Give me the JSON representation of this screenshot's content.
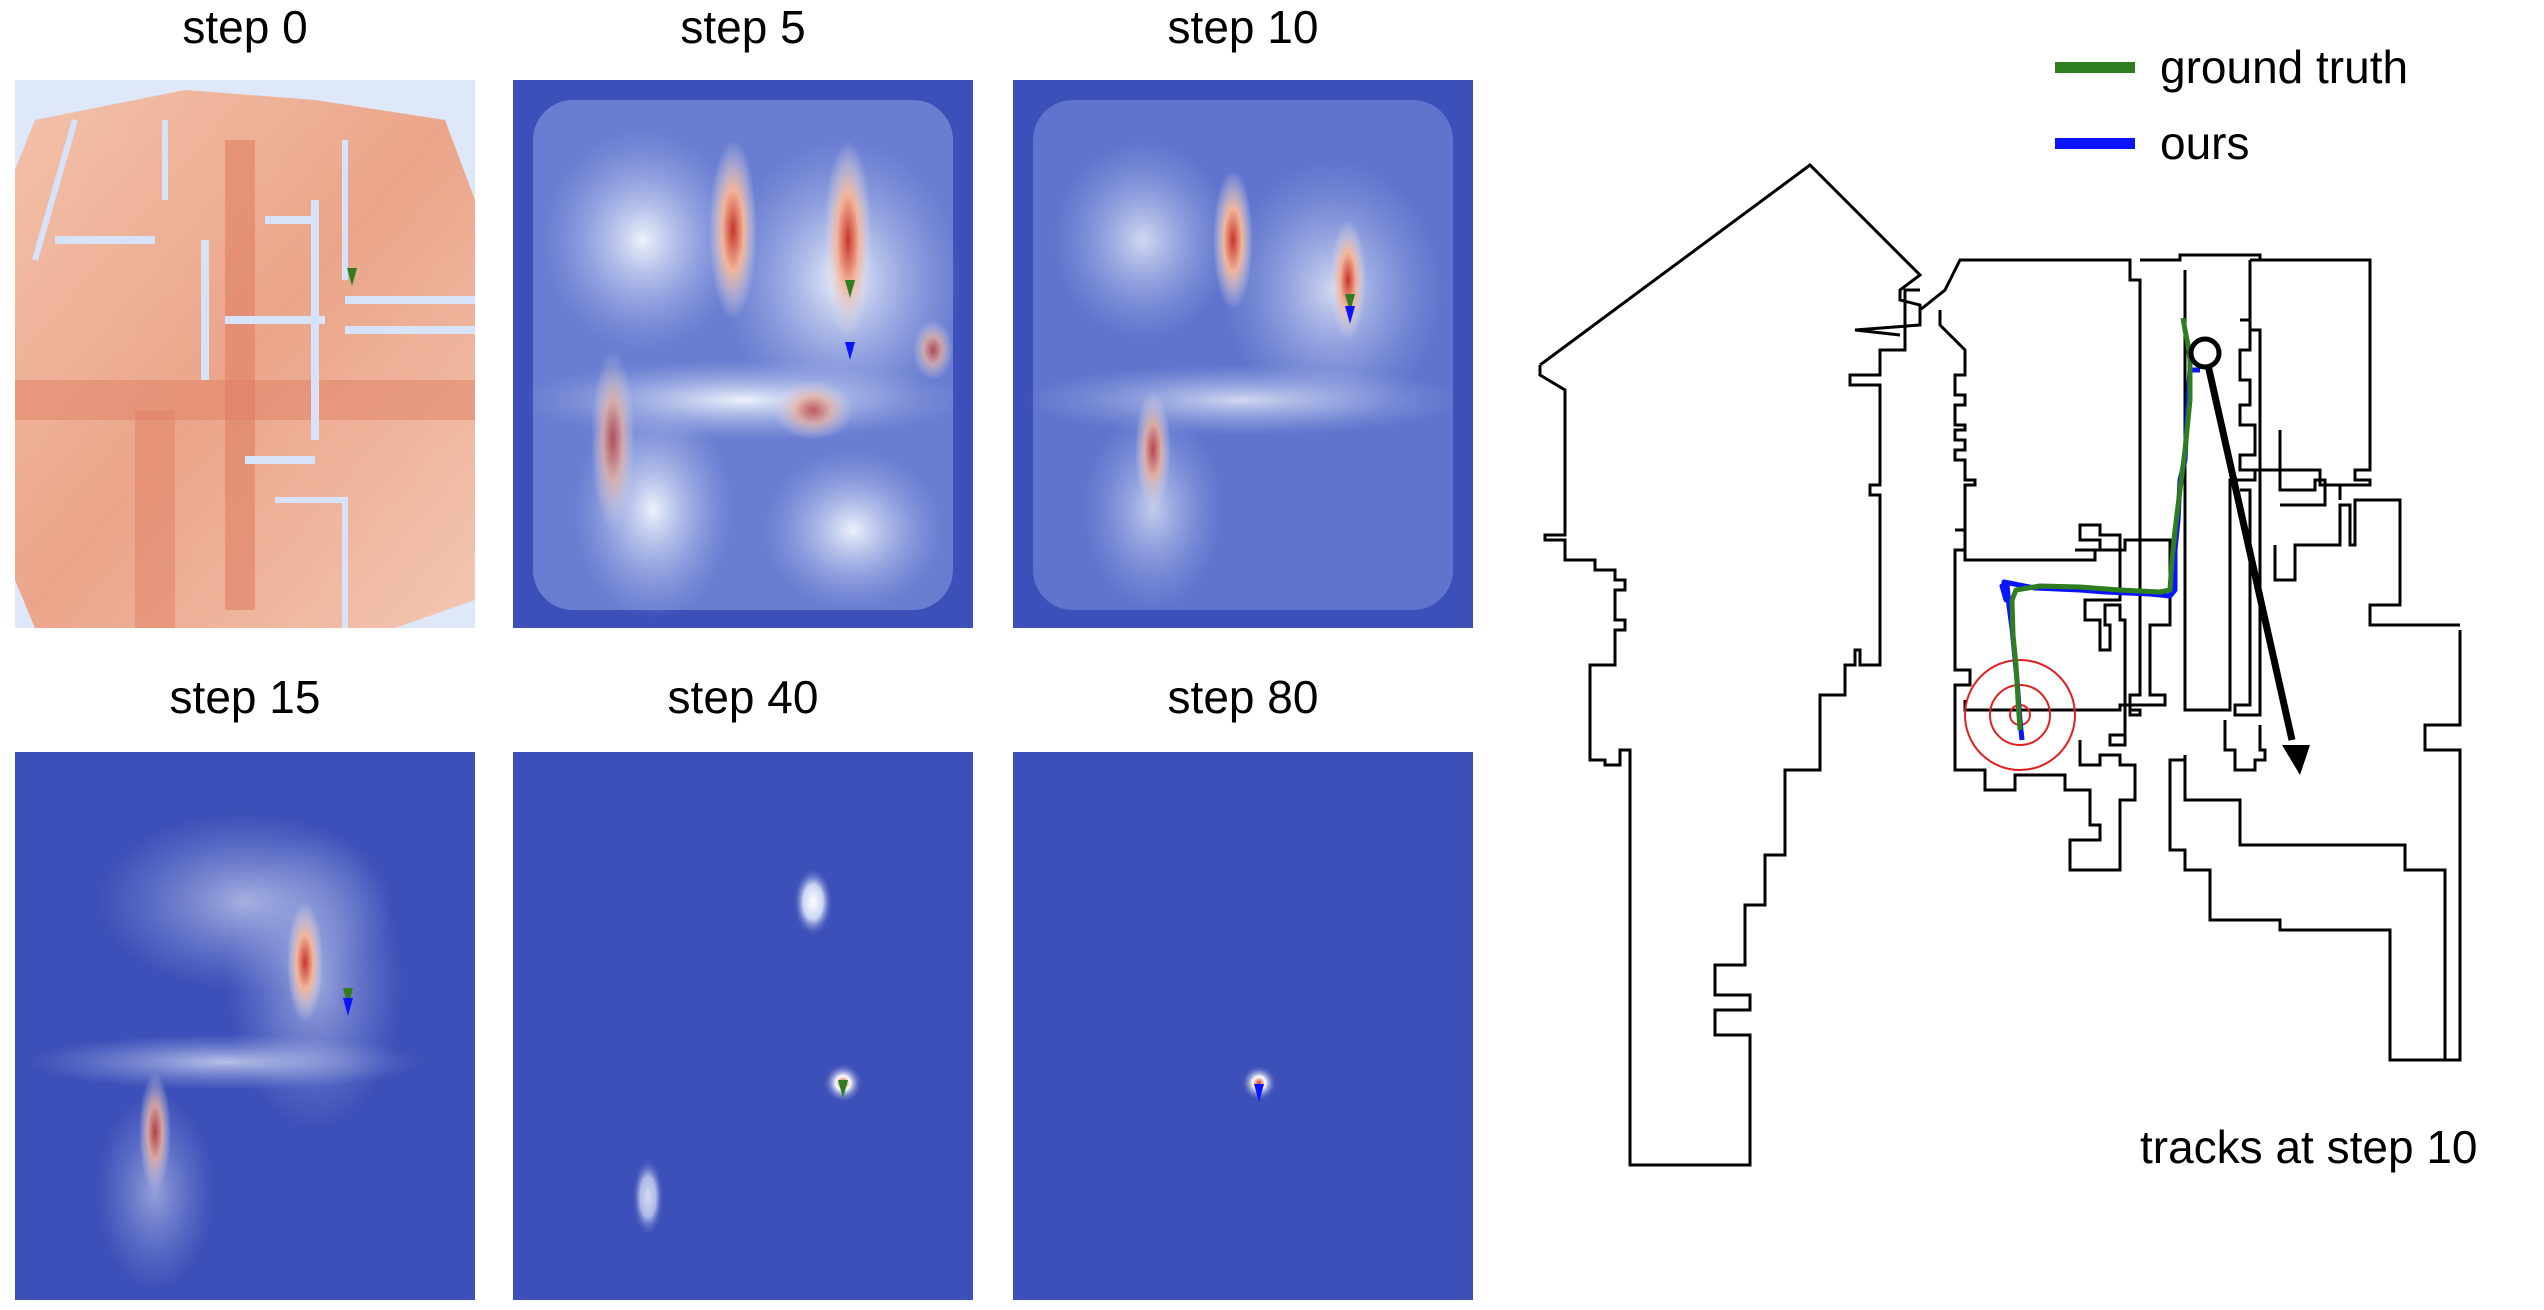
{
  "panels": [
    {
      "title": "step 0"
    },
    {
      "title": "step 5"
    },
    {
      "title": "step 10"
    },
    {
      "title": "step 15"
    },
    {
      "title": "step 40"
    },
    {
      "title": "step 80"
    }
  ],
  "legend": [
    {
      "label": "ground truth",
      "color": "#2e7d1f"
    },
    {
      "label": "ours",
      "color": "#0a14ff"
    }
  ],
  "annotation": "tracks at step 10",
  "colors": {
    "low": "#3d4fb8",
    "mid": "#dde6f7",
    "high": "#d94a2f",
    "warm_bg": "#efb399",
    "target_circle": "#e02020"
  }
}
